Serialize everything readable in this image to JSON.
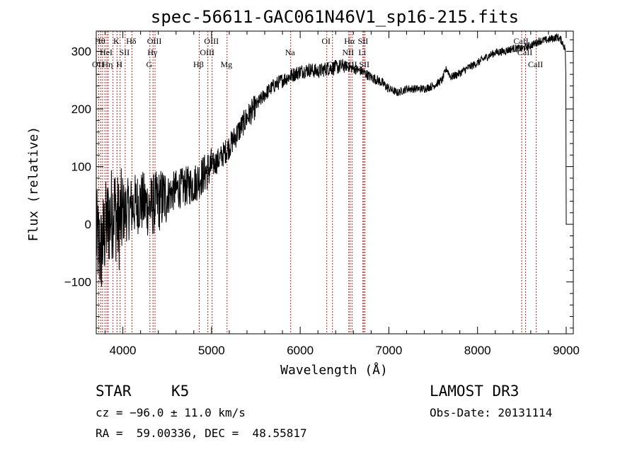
{
  "chart_data": {
    "type": "line",
    "title": "spec-56611-GAC061N46V1_sp16-215.fits",
    "xlabel": "Wavelength (Å)",
    "ylabel": "Flux (relative)",
    "xlim": [
      3700,
      9080
    ],
    "ylim": [
      -190,
      335
    ],
    "x_ticks": [
      4000,
      5000,
      6000,
      7000,
      8000,
      9000
    ],
    "y_ticks": [
      -100,
      0,
      100,
      200,
      300
    ],
    "x_tick_labels": [
      "4000",
      "5000",
      "6000",
      "7000",
      "8000",
      "9000"
    ],
    "y_tick_labels": [
      "−100",
      "0",
      "100",
      "200",
      "300"
    ],
    "spectrum_anchors": {
      "x": [
        3700,
        3750,
        3800,
        3850,
        3900,
        3950,
        4000,
        4100,
        4200,
        4300,
        4400,
        4500,
        4600,
        4700,
        4800,
        4900,
        5000,
        5100,
        5200,
        5300,
        5400,
        5500,
        5600,
        5700,
        5800,
        5900,
        6000,
        6100,
        6200,
        6300,
        6400,
        6500,
        6600,
        6700,
        6800,
        6900,
        7000,
        7100,
        7200,
        7300,
        7400,
        7500,
        7600,
        7650,
        7700,
        7800,
        7900,
        8000,
        8100,
        8200,
        8300,
        8400,
        8500,
        8600,
        8700,
        8800,
        8900,
        8950,
        9000
      ],
      "y": [
        -20,
        -50,
        -10,
        10,
        30,
        0,
        20,
        30,
        40,
        30,
        40,
        50,
        60,
        65,
        70,
        85,
        100,
        115,
        135,
        160,
        185,
        205,
        225,
        240,
        250,
        258,
        265,
        268,
        265,
        270,
        272,
        275,
        270,
        265,
        255,
        248,
        235,
        228,
        235,
        235,
        235,
        240,
        250,
        270,
        255,
        262,
        272,
        280,
        290,
        298,
        300,
        305,
        305,
        310,
        318,
        320,
        325,
        318,
        300
      ]
    },
    "series": [
      {
        "name": "Flux",
        "color": "#000000"
      }
    ],
    "lines": [
      {
        "wave": 3727,
        "label": "OII",
        "row": 3
      },
      {
        "wave": 3750,
        "label": "Hθ",
        "row": 1
      },
      {
        "wave": 3771,
        "label": "",
        "row": 0
      },
      {
        "wave": 3798,
        "label": "",
        "row": 0
      },
      {
        "wave": 3820,
        "label": "HeI",
        "row": 2
      },
      {
        "wave": 3835,
        "label": "Hη",
        "row": 3
      },
      {
        "wave": 3889,
        "label": "",
        "row": 0
      },
      {
        "wave": 3934,
        "label": "K",
        "row": 1
      },
      {
        "wave": 3969,
        "label": "H",
        "row": 3
      },
      {
        "wave": 4026,
        "label": "SII",
        "row": 2
      },
      {
        "wave": 4102,
        "label": "Hδ",
        "row": 1
      },
      {
        "wave": 4305,
        "label": "G",
        "row": 3
      },
      {
        "wave": 4340,
        "label": "Hγ",
        "row": 2
      },
      {
        "wave": 4363,
        "label": "OIII",
        "row": 1
      },
      {
        "wave": 4861,
        "label": "Hβ",
        "row": 3
      },
      {
        "wave": 4959,
        "label": "OIII",
        "row": 2
      },
      {
        "wave": 5007,
        "label": "OIII",
        "row": 1
      },
      {
        "wave": 5175,
        "label": "Mg",
        "row": 3
      },
      {
        "wave": 5893,
        "label": "Na",
        "row": 2
      },
      {
        "wave": 6300,
        "label": "OI",
        "row": 1
      },
      {
        "wave": 6364,
        "label": "OI",
        "row": 3
      },
      {
        "wave": 6548,
        "label": "NII",
        "row": 2
      },
      {
        "wave": 6563,
        "label": "Hα",
        "row": 1
      },
      {
        "wave": 6584,
        "label": "NII",
        "row": 3
      },
      {
        "wave": 6707,
        "label": "Li",
        "row": 2
      },
      {
        "wave": 6717,
        "label": "SII",
        "row": 1
      },
      {
        "wave": 6731,
        "label": "SII",
        "row": 3
      },
      {
        "wave": 8498,
        "label": "CaII",
        "row": 1
      },
      {
        "wave": 8542,
        "label": "CaII",
        "row": 2
      },
      {
        "wave": 8662,
        "label": "CaII",
        "row": 3
      }
    ]
  },
  "info": {
    "object_class": "STAR",
    "subclass": "K5",
    "survey": "LAMOST DR3",
    "redshift": "cz = −96.0 ± 11.0 km/s",
    "obs_date": "Obs-Date: 20131114",
    "coords": "RA =  59.00336, DEC =  48.55817"
  },
  "colors": {
    "spectrum": "#000000",
    "line_marker": "#b22222",
    "axis": "#000000"
  }
}
